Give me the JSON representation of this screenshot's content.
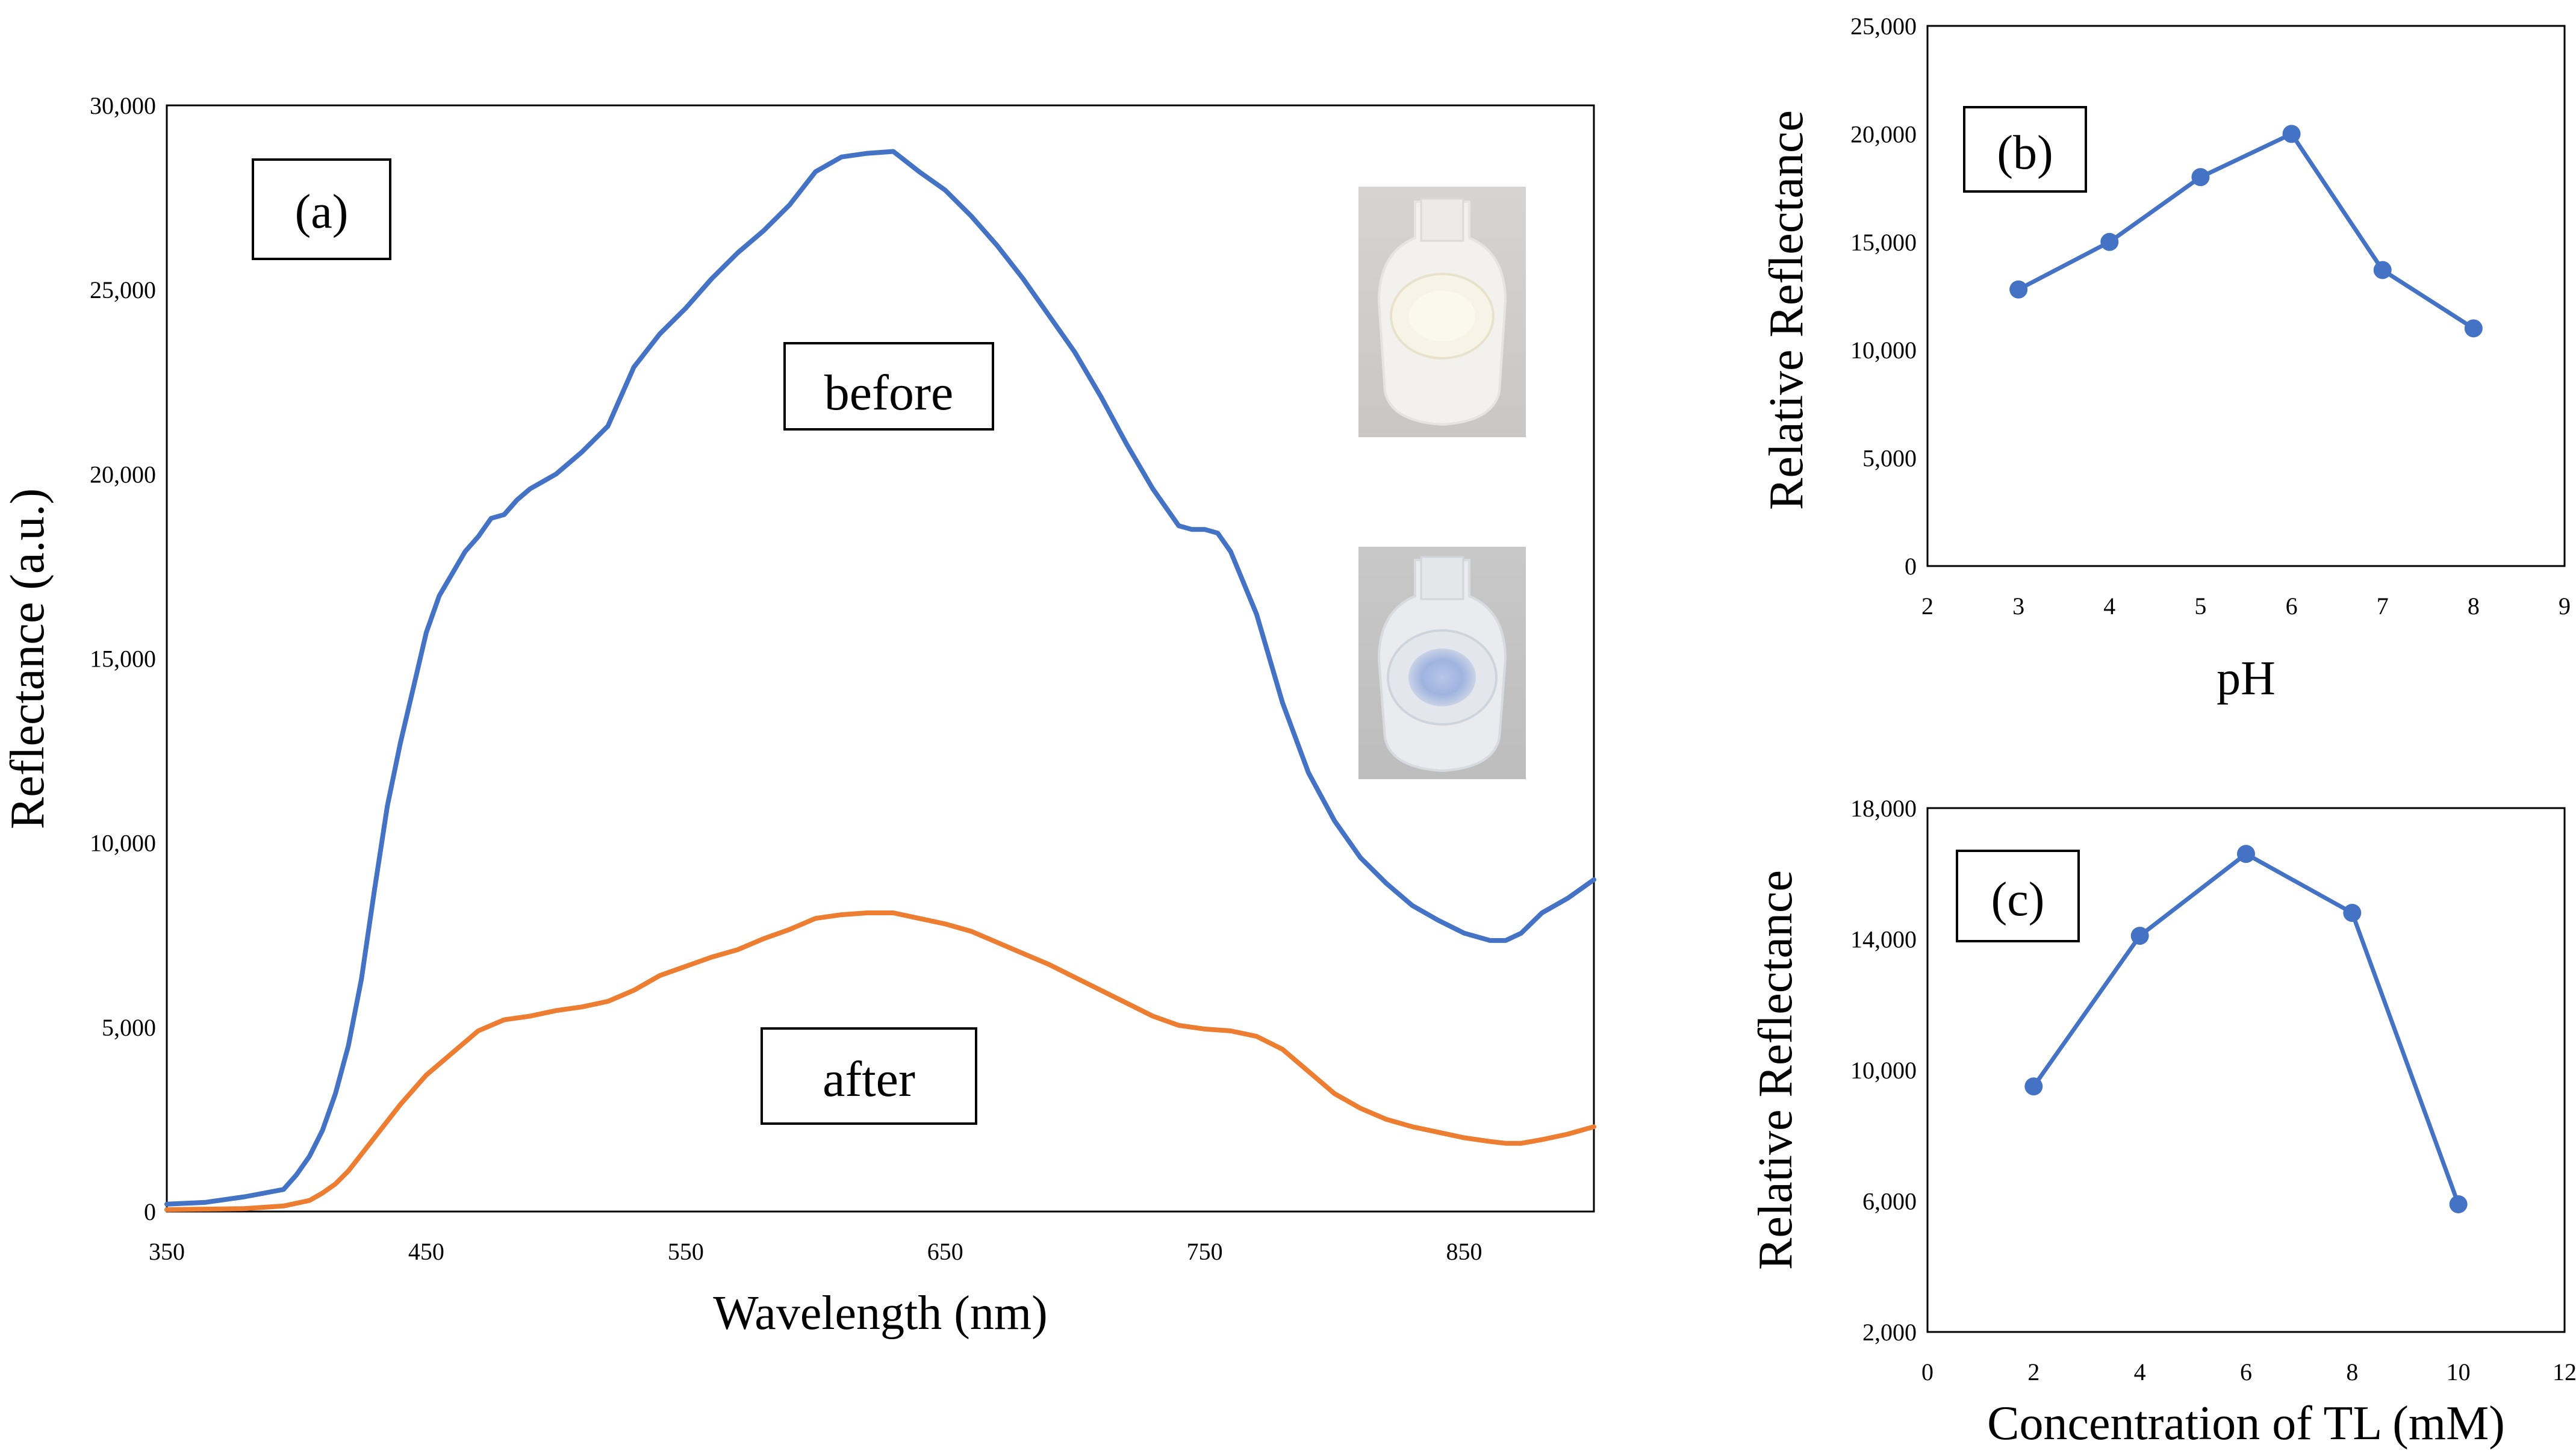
{
  "chart_data": [
    {
      "id": "a",
      "type": "line",
      "panel_label": "(a)",
      "xlabel": "Wavelength (nm)",
      "ylabel": "Reflectance (a.u.)",
      "xlim": [
        350,
        900
      ],
      "ylim": [
        0,
        30000
      ],
      "xticks": [
        350,
        450,
        550,
        650,
        750,
        850
      ],
      "xtick_labels": [
        "350",
        "450",
        "550",
        "650",
        "750",
        "850"
      ],
      "yticks": [
        0,
        5000,
        10000,
        15000,
        20000,
        25000,
        30000
      ],
      "ytick_labels": [
        "0",
        "5,000",
        "10,000",
        "15,000",
        "20,000",
        "25,000",
        "30,000"
      ],
      "grid": false,
      "series": [
        {
          "name": "before",
          "color": "#4472C4",
          "x": [
            350,
            365,
            380,
            395,
            400,
            405,
            410,
            415,
            420,
            425,
            430,
            435,
            440,
            445,
            450,
            455,
            460,
            465,
            470,
            475,
            480,
            485,
            490,
            495,
            500,
            510,
            520,
            530,
            540,
            550,
            560,
            570,
            580,
            590,
            600,
            610,
            620,
            630,
            640,
            650,
            660,
            670,
            680,
            690,
            700,
            710,
            720,
            730,
            740,
            745,
            750,
            755,
            760,
            770,
            780,
            790,
            800,
            810,
            820,
            830,
            840,
            850,
            860,
            866,
            872,
            880,
            890,
            900
          ],
          "y": [
            200,
            250,
            400,
            600,
            1000,
            1500,
            2200,
            3200,
            4500,
            6300,
            8700,
            11000,
            12700,
            14200,
            15700,
            16700,
            17300,
            17900,
            18300,
            18800,
            18900,
            19300,
            19600,
            19800,
            20000,
            20600,
            21300,
            22900,
            23800,
            24500,
            25300,
            26000,
            26600,
            27300,
            28200,
            28600,
            28700,
            28750,
            28200,
            27700,
            27000,
            26200,
            25300,
            24300,
            23300,
            22100,
            20800,
            19600,
            18600,
            18500,
            18500,
            18400,
            17900,
            16200,
            13800,
            11900,
            10600,
            9600,
            8900,
            8300,
            7900,
            7550,
            7350,
            7350,
            7550,
            8100,
            8500,
            9000
          ]
        },
        {
          "name": "after",
          "color": "#ED7D31",
          "x": [
            350,
            380,
            395,
            405,
            410,
            415,
            420,
            430,
            440,
            450,
            460,
            470,
            480,
            490,
            500,
            510,
            520,
            530,
            540,
            550,
            560,
            570,
            580,
            590,
            600,
            610,
            620,
            630,
            640,
            650,
            660,
            670,
            680,
            690,
            700,
            710,
            720,
            730,
            740,
            750,
            760,
            770,
            780,
            790,
            800,
            810,
            820,
            830,
            840,
            850,
            860,
            866,
            872,
            880,
            890,
            900
          ],
          "y": [
            50,
            80,
            150,
            300,
            500,
            750,
            1100,
            2000,
            2900,
            3700,
            4300,
            4900,
            5200,
            5300,
            5450,
            5550,
            5700,
            6000,
            6400,
            6650,
            6900,
            7100,
            7400,
            7650,
            7950,
            8050,
            8100,
            8100,
            7950,
            7800,
            7600,
            7300,
            7000,
            6700,
            6350,
            6000,
            5650,
            5300,
            5050,
            4950,
            4900,
            4750,
            4400,
            3800,
            3200,
            2800,
            2500,
            2300,
            2150,
            2000,
            1900,
            1850,
            1850,
            1950,
            2100,
            2300
          ]
        }
      ],
      "annotations": [
        "before",
        "after"
      ],
      "inset_images": [
        "cuvette-before-photo",
        "cuvette-after-photo"
      ]
    },
    {
      "id": "b",
      "type": "line",
      "panel_label": "(b)",
      "xlabel": "pH",
      "ylabel": "Relative Reflectance",
      "xlim": [
        2,
        9
      ],
      "ylim": [
        0,
        25000
      ],
      "xticks": [
        2,
        3,
        4,
        5,
        6,
        7,
        8,
        9
      ],
      "xtick_labels": [
        "2",
        "3",
        "4",
        "5",
        "6",
        "7",
        "8",
        "9"
      ],
      "yticks": [
        0,
        5000,
        10000,
        15000,
        20000,
        25000
      ],
      "ytick_labels": [
        "0",
        "5,000",
        "10,000",
        "15,000",
        "20,000",
        "25,000"
      ],
      "grid": false,
      "series": [
        {
          "name": "reflectance-vs-pH",
          "color": "#4472C4",
          "x": [
            3,
            4,
            5,
            6,
            7,
            8
          ],
          "y": [
            12800,
            15000,
            18000,
            20000,
            13700,
            11000
          ]
        }
      ]
    },
    {
      "id": "c",
      "type": "line",
      "panel_label": "(c)",
      "xlabel": "Concentration of TL (mM)",
      "ylabel": "Relative Reflectance",
      "xlim": [
        0,
        12
      ],
      "ylim": [
        2000,
        18000
      ],
      "xticks": [
        0,
        2,
        4,
        6,
        8,
        10,
        12
      ],
      "xtick_labels": [
        "0",
        "2",
        "4",
        "6",
        "8",
        "10",
        "12"
      ],
      "yticks": [
        2000,
        6000,
        10000,
        14000,
        18000
      ],
      "ytick_labels": [
        "2,000",
        "6,000",
        "10,000",
        "14,000",
        "18,000"
      ],
      "grid": false,
      "series": [
        {
          "name": "reflectance-vs-concentration",
          "color": "#4472C4",
          "x": [
            2,
            4,
            6,
            8,
            10
          ],
          "y": [
            9500,
            14100,
            16600,
            14800,
            5900
          ]
        }
      ]
    }
  ]
}
